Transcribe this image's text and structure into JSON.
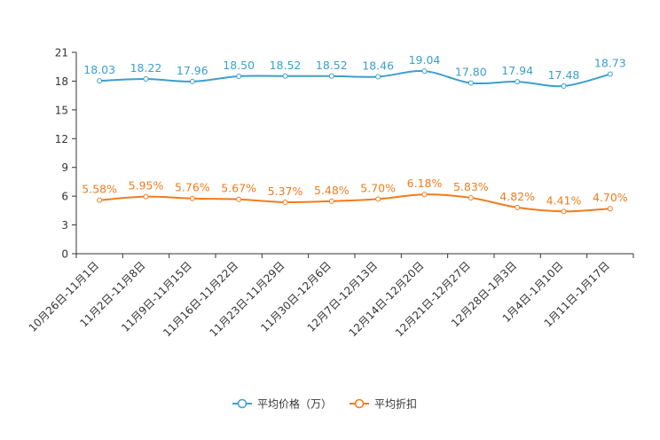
{
  "chart_data": {
    "type": "line",
    "title": "",
    "xlabel": "",
    "ylabel": "",
    "ylim": [
      0,
      21
    ],
    "yticks": [
      0,
      3,
      6,
      9,
      12,
      15,
      18,
      21
    ],
    "categories": [
      "10月26日-11月1日",
      "11月2日-11月8日",
      "11月9日-11月15日",
      "11月16日-11月22日",
      "11月23日-11月29日",
      "11月30日-12月6日",
      "12月7日-12月13日",
      "12月14日-12月20日",
      "12月21日-12月27日",
      "12月28日-1月3日",
      "1月4日-1月10日",
      "1月11日-1月17日"
    ],
    "series": [
      {
        "name": "平均价格（万）",
        "color": "#3b9fcf",
        "values": [
          18.03,
          18.22,
          17.96,
          18.5,
          18.52,
          18.52,
          18.46,
          19.04,
          17.8,
          17.94,
          17.48,
          18.73
        ],
        "labels": [
          "18.03",
          "18.22",
          "17.96",
          "18.50",
          "18.52",
          "18.52",
          "18.46",
          "19.04",
          "17.80",
          "17.94",
          "17.48",
          "18.73"
        ]
      },
      {
        "name": "平均折扣",
        "color": "#f07c1e",
        "values": [
          5.58,
          5.95,
          5.76,
          5.67,
          5.37,
          5.48,
          5.7,
          6.18,
          5.83,
          4.82,
          4.41,
          4.7
        ],
        "labels": [
          "5.58%",
          "5.95%",
          "5.76%",
          "5.67%",
          "5.37%",
          "5.48%",
          "5.70%",
          "6.18%",
          "5.83%",
          "4.82%",
          "4.41%",
          "4.70%"
        ]
      }
    ],
    "legend": "bottom-center",
    "grid": false
  }
}
